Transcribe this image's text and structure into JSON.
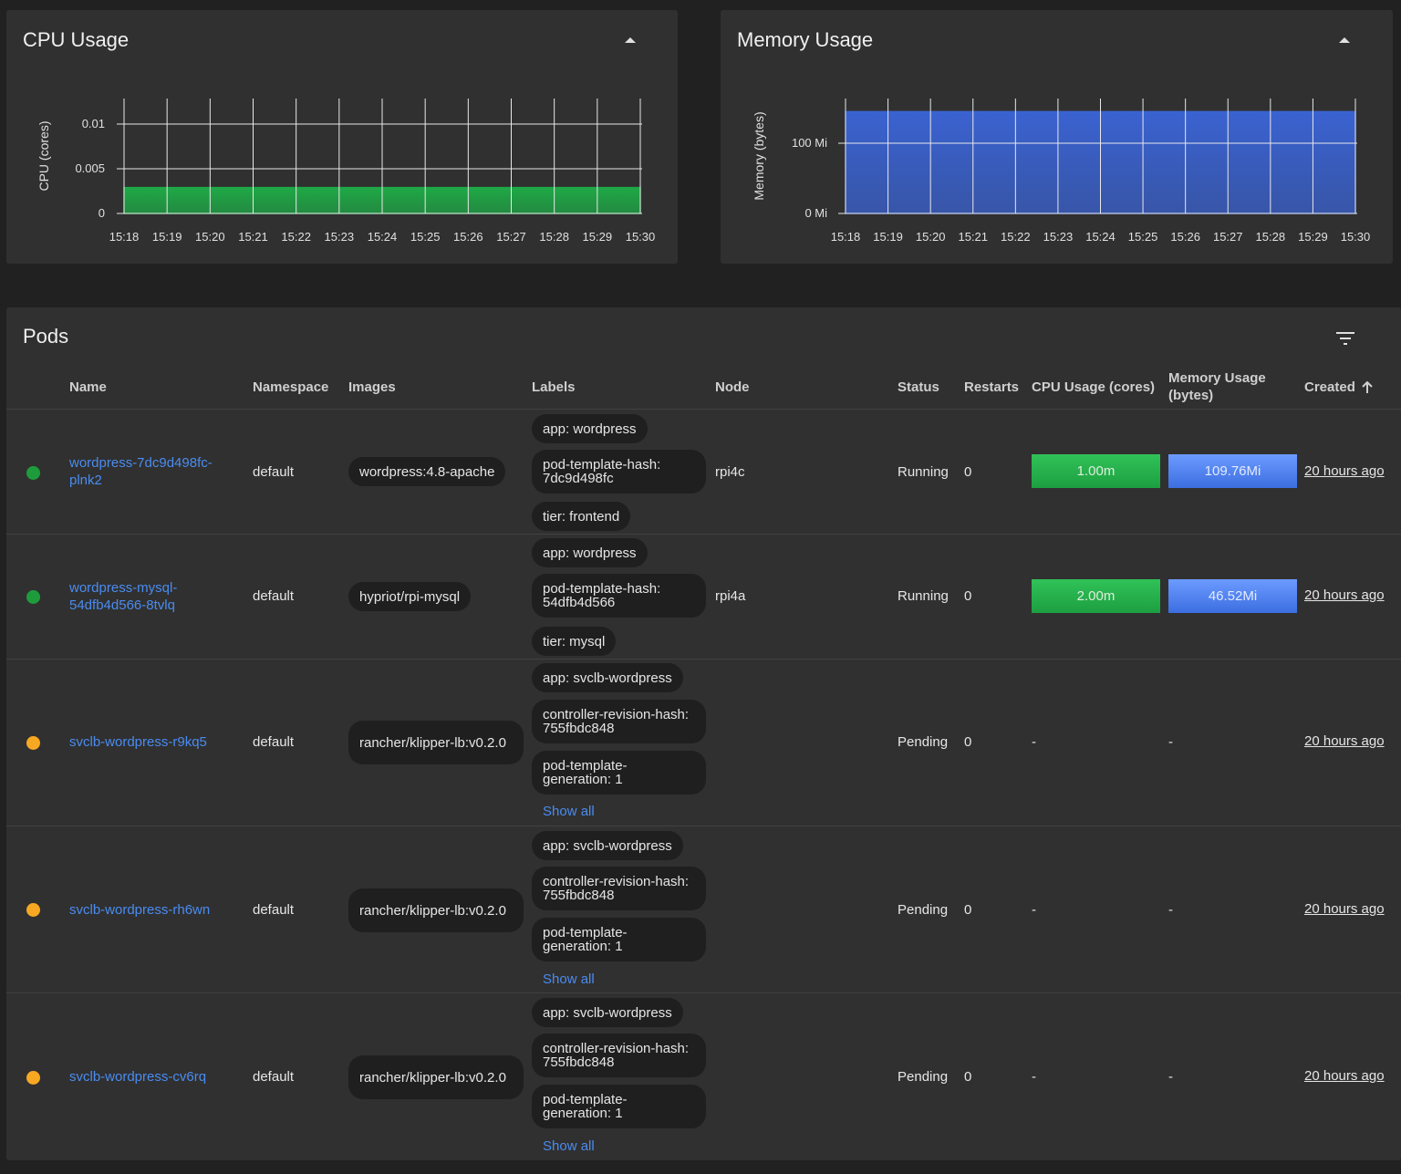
{
  "cpu_card": {
    "title": "CPU Usage",
    "chart_data": {
      "type": "area",
      "title": "",
      "ylabel": "CPU (cores)",
      "xlabel": "",
      "x": [
        "15:18",
        "15:19",
        "15:20",
        "15:21",
        "15:22",
        "15:23",
        "15:24",
        "15:25",
        "15:26",
        "15:27",
        "15:28",
        "15:29",
        "15:30"
      ],
      "y_ticks": [
        "0",
        "0.005",
        "0.01"
      ],
      "ylim": [
        0,
        0.0125
      ],
      "values": [
        0.003,
        0.003,
        0.003,
        0.003,
        0.003,
        0.003,
        0.003,
        0.003,
        0.003,
        0.003,
        0.003,
        0.003,
        0.003
      ],
      "grid": true,
      "color": "#1fa846"
    }
  },
  "mem_card": {
    "title": "Memory Usage",
    "chart_data": {
      "type": "area",
      "title": "",
      "ylabel": "Memory (bytes)",
      "xlabel": "",
      "x": [
        "15:18",
        "15:19",
        "15:20",
        "15:21",
        "15:22",
        "15:23",
        "15:24",
        "15:25",
        "15:26",
        "15:27",
        "15:28",
        "15:29",
        "15:30"
      ],
      "y_ticks": [
        "0 Mi",
        "100 Mi"
      ],
      "ylim": [
        0,
        165
      ],
      "values": [
        156,
        156,
        156,
        156,
        156,
        156,
        156,
        156,
        156,
        156,
        156,
        156,
        156
      ],
      "grid": true,
      "color": "#3a62d0"
    }
  },
  "pods": {
    "title": "Pods",
    "columns": {
      "name": "Name",
      "namespace": "Namespace",
      "images": "Images",
      "labels": "Labels",
      "node": "Node",
      "status": "Status",
      "restarts": "Restarts",
      "cpu": "CPU Usage (cores)",
      "memory": "Memory Usage (bytes)",
      "created": "Created"
    },
    "rows": [
      {
        "status_color": "#1e9c3c",
        "name": "wordpress-7dc9d498fc-plnk2",
        "namespace": "default",
        "image": "wordpress:4.8-apache",
        "labels": [
          "app: wordpress",
          "pod-template-hash: 7dc9d498fc",
          "tier: frontend"
        ],
        "node": "rpi4c",
        "status": "Running",
        "restarts": "0",
        "cpu": "1.00m",
        "memory": "109.76Mi",
        "created": "20 hours ago"
      },
      {
        "status_color": "#1e9c3c",
        "name": "wordpress-mysql-54dfb4d566-8tvlq",
        "namespace": "default",
        "image": "hypriot/rpi-mysql",
        "labels": [
          "app: wordpress",
          "pod-template-hash: 54dfb4d566",
          "tier: mysql"
        ],
        "node": "rpi4a",
        "status": "Running",
        "restarts": "0",
        "cpu": "2.00m",
        "memory": "46.52Mi",
        "created": "20 hours ago"
      },
      {
        "status_color": "#f7a823",
        "name": "svclb-wordpress-r9kq5",
        "namespace": "default",
        "image": "rancher/klipper-lb:v0.2.0",
        "labels": [
          "app: svclb-wordpress",
          "controller-revision-hash: 755fbdc848",
          "pod-template-generation: 1"
        ],
        "show_all": "Show all",
        "node": "",
        "status": "Pending",
        "restarts": "0",
        "cpu": "-",
        "memory": "-",
        "created": "20 hours ago"
      },
      {
        "status_color": "#f7a823",
        "name": "svclb-wordpress-rh6wn",
        "namespace": "default",
        "image": "rancher/klipper-lb:v0.2.0",
        "labels": [
          "app: svclb-wordpress",
          "controller-revision-hash: 755fbdc848",
          "pod-template-generation: 1"
        ],
        "show_all": "Show all",
        "node": "",
        "status": "Pending",
        "restarts": "0",
        "cpu": "-",
        "memory": "-",
        "created": "20 hours ago"
      },
      {
        "status_color": "#f7a823",
        "name": "svclb-wordpress-cv6rq",
        "namespace": "default",
        "image": "rancher/klipper-lb:v0.2.0",
        "labels": [
          "app: svclb-wordpress",
          "controller-revision-hash: 755fbdc848",
          "pod-template-generation: 1"
        ],
        "show_all": "Show all",
        "node": "",
        "status": "Pending",
        "restarts": "0",
        "cpu": "-",
        "memory": "-",
        "created": "20 hours ago"
      }
    ]
  }
}
